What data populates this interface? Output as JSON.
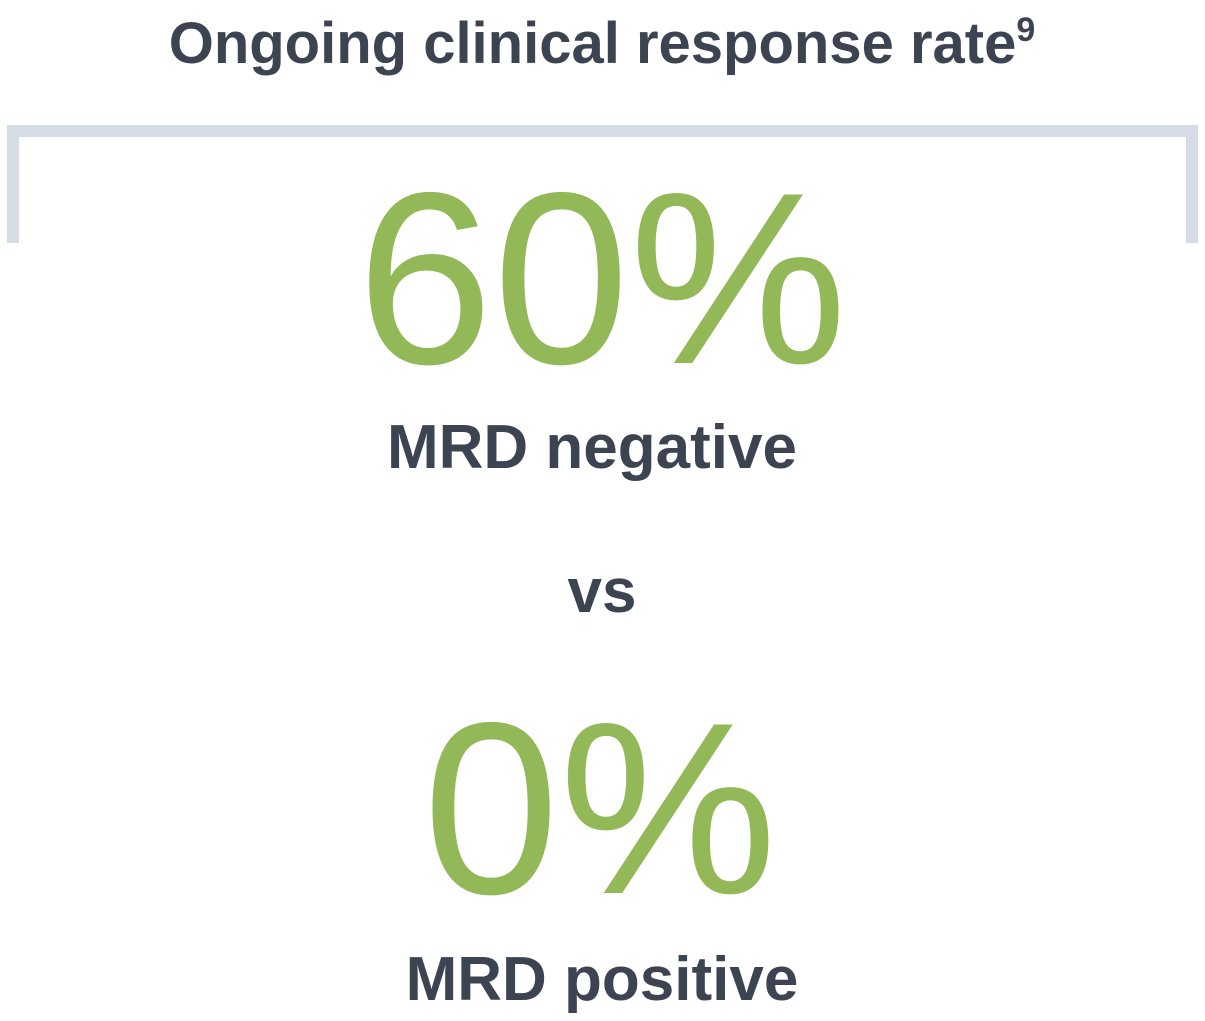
{
  "header": {
    "title": "Ongoing clinical response rate",
    "superscript": "9"
  },
  "stats": [
    {
      "value": "60%",
      "label": "MRD negative"
    },
    {
      "value": "0%",
      "label": "MRD positive"
    }
  ],
  "separator": "vs"
}
